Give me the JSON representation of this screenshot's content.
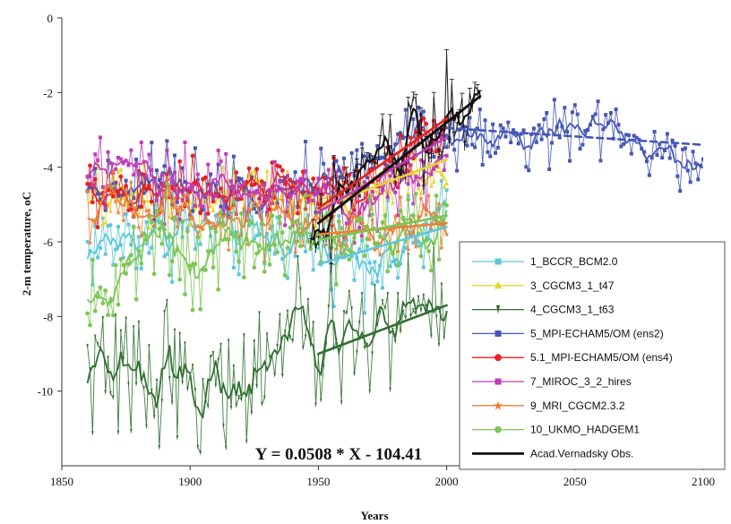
{
  "chart_data": {
    "type": "line",
    "title": "",
    "xlabel": "Years",
    "ylabel": "2-m temperature, oC",
    "xlim": [
      1850,
      2100
    ],
    "ylim": [
      -12,
      0
    ],
    "xticks": [
      1850,
      1900,
      1950,
      2000,
      2050,
      2100
    ],
    "yticks": [
      0,
      -2,
      -4,
      -6,
      -8,
      -10
    ],
    "grid": false,
    "legend_position": "bottom-right",
    "annotation": "Y = 0.0508 * X - 104.41",
    "series": [
      {
        "name": "1_BCCR_BCM2.0",
        "color": "#5bc8dc",
        "marker": "square",
        "start_year": 1860,
        "end_year": 2000,
        "anchors": [
          [
            1860,
            -6.2
          ],
          [
            1880,
            -5.8
          ],
          [
            1900,
            -5.6
          ],
          [
            1920,
            -5.8
          ],
          [
            1940,
            -5.9
          ],
          [
            1960,
            -6.2
          ],
          [
            1980,
            -6.4
          ],
          [
            2000,
            -5.5
          ]
        ],
        "trend": [
          [
            1950,
            -6.6
          ],
          [
            2000,
            -5.6
          ]
        ]
      },
      {
        "name": "3_CGCM3_1_t47",
        "color": "#e8d52c",
        "marker": "triangle",
        "start_year": 1860,
        "end_year": 2000,
        "anchors": [
          [
            1860,
            -4.9
          ],
          [
            1880,
            -4.7
          ],
          [
            1900,
            -4.8
          ],
          [
            1920,
            -4.7
          ],
          [
            1940,
            -4.8
          ],
          [
            1960,
            -5.0
          ],
          [
            1980,
            -4.4
          ],
          [
            2000,
            -3.9
          ]
        ],
        "trend": [
          [
            1950,
            -5.1
          ],
          [
            2000,
            -3.8
          ]
        ]
      },
      {
        "name": "4_CGCM3_1_t63",
        "color": "#2f6f2f",
        "marker": "wedge",
        "start_year": 1860,
        "end_year": 2000,
        "anchors": [
          [
            1860,
            -9.3
          ],
          [
            1870,
            -9.7
          ],
          [
            1880,
            -9.6
          ],
          [
            1890,
            -9.3
          ],
          [
            1900,
            -9.7
          ],
          [
            1910,
            -10.0
          ],
          [
            1920,
            -9.9
          ],
          [
            1930,
            -9.2
          ],
          [
            1940,
            -8.5
          ],
          [
            1950,
            -9.0
          ],
          [
            1960,
            -8.5
          ],
          [
            1970,
            -8.4
          ],
          [
            1980,
            -8.2
          ],
          [
            1990,
            -7.6
          ],
          [
            2000,
            -8.0
          ]
        ],
        "trend": [
          [
            1950,
            -9.0
          ],
          [
            2000,
            -7.7
          ]
        ]
      },
      {
        "name": "5_MPI-ECHAM5/OM (ens2)",
        "color": "#4456b8",
        "marker": "square",
        "start_year": 1860,
        "end_year": 2100,
        "anchors": [
          [
            1860,
            -4.5
          ],
          [
            1880,
            -4.4
          ],
          [
            1900,
            -4.4
          ],
          [
            1920,
            -4.5
          ],
          [
            1940,
            -4.4
          ],
          [
            1950,
            -4.5
          ],
          [
            1960,
            -4.3
          ],
          [
            1980,
            -3.5
          ],
          [
            1990,
            -2.9
          ],
          [
            2000,
            -3.2
          ],
          [
            2020,
            -3.2
          ],
          [
            2040,
            -3.1
          ],
          [
            2055,
            -2.8
          ],
          [
            2070,
            -3.3
          ],
          [
            2085,
            -3.4
          ],
          [
            2100,
            -4.1
          ]
        ],
        "trend": [
          [
            2000,
            -2.95
          ],
          [
            2100,
            -3.4
          ]
        ],
        "trend_dashed": true
      },
      {
        "name": "5.1_MPI-ECHAM5/OM (ens4)",
        "color": "#e82020",
        "marker": "circle",
        "start_year": 1860,
        "end_year": 2000,
        "anchors": [
          [
            1860,
            -4.8
          ],
          [
            1880,
            -4.7
          ],
          [
            1900,
            -4.6
          ],
          [
            1920,
            -4.5
          ],
          [
            1940,
            -4.6
          ],
          [
            1950,
            -4.7
          ],
          [
            1960,
            -4.8
          ],
          [
            1980,
            -4.0
          ],
          [
            2000,
            -3.0
          ]
        ],
        "trend": [
          [
            1950,
            -5.1
          ],
          [
            2000,
            -2.7
          ]
        ]
      },
      {
        "name": "7_MIROC_3_2_hires",
        "color": "#c03cb8",
        "marker": "square",
        "start_year": 1860,
        "end_year": 2000,
        "anchors": [
          [
            1860,
            -4.2
          ],
          [
            1880,
            -4.3
          ],
          [
            1900,
            -4.4
          ],
          [
            1920,
            -4.5
          ],
          [
            1940,
            -4.7
          ],
          [
            1960,
            -5.0
          ],
          [
            1980,
            -4.6
          ],
          [
            2000,
            -3.7
          ]
        ],
        "trend": [
          [
            1950,
            -5.2
          ],
          [
            2000,
            -3.2
          ]
        ]
      },
      {
        "name": "9_MRI_CGCM2.3.2",
        "color": "#e8803a",
        "marker": "star",
        "start_year": 1860,
        "end_year": 2000,
        "anchors": [
          [
            1860,
            -5.1
          ],
          [
            1880,
            -5.2
          ],
          [
            1900,
            -5.2
          ],
          [
            1920,
            -5.3
          ],
          [
            1940,
            -5.4
          ],
          [
            1960,
            -5.7
          ],
          [
            1980,
            -5.6
          ],
          [
            2000,
            -5.5
          ]
        ],
        "trend": [
          [
            1950,
            -5.8
          ],
          [
            2000,
            -5.5
          ]
        ]
      },
      {
        "name": "10_UKMO_HADGEM1",
        "color": "#7cc655",
        "marker": "circle",
        "start_year": 1860,
        "end_year": 2000,
        "anchors": [
          [
            1860,
            -6.8
          ],
          [
            1865,
            -7.7
          ],
          [
            1875,
            -6.6
          ],
          [
            1885,
            -5.8
          ],
          [
            1900,
            -6.3
          ],
          [
            1920,
            -6.2
          ],
          [
            1930,
            -5.8
          ],
          [
            1950,
            -6.0
          ],
          [
            1960,
            -5.9
          ],
          [
            1980,
            -5.7
          ],
          [
            2000,
            -5.4
          ]
        ],
        "trend": [
          [
            1950,
            -5.95
          ],
          [
            2000,
            -5.3
          ]
        ]
      },
      {
        "name": "Acad.Vernadsky Obs.",
        "color": "#111111",
        "marker": "none",
        "start_year": 1947,
        "end_year": 2013,
        "anchors": [
          [
            1947,
            -5.5
          ],
          [
            1955,
            -5.2
          ],
          [
            1960,
            -4.8
          ],
          [
            1965,
            -4.5
          ],
          [
            1970,
            -3.7
          ],
          [
            1975,
            -3.4
          ],
          [
            1980,
            -3.6
          ],
          [
            1985,
            -3.0
          ],
          [
            1990,
            -3.1
          ],
          [
            1995,
            -2.6
          ],
          [
            2000,
            -2.7
          ],
          [
            2005,
            -2.3
          ],
          [
            2013,
            -2.2
          ]
        ],
        "trend": [
          [
            1950,
            -5.5
          ],
          [
            2013,
            -2.1
          ]
        ]
      }
    ]
  }
}
